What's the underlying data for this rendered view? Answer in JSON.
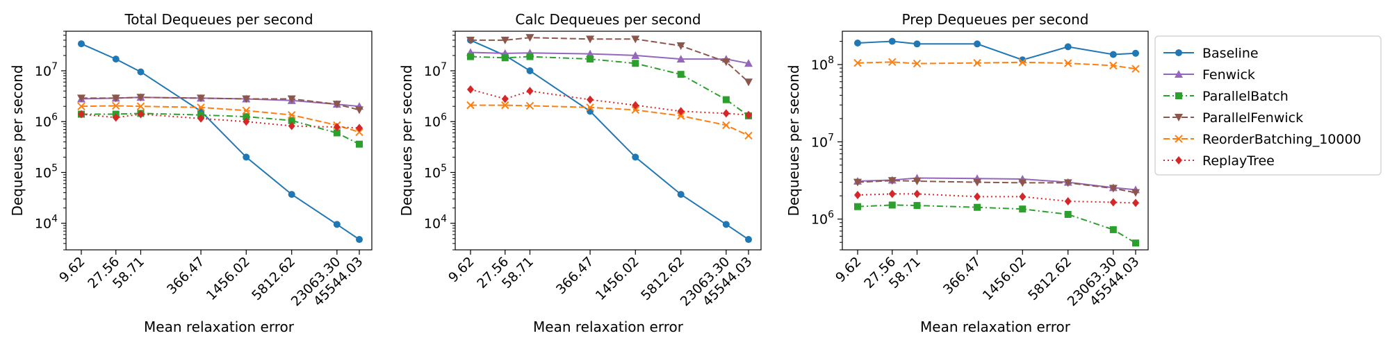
{
  "colors": {
    "Baseline": "#1f77b4",
    "Fenwick": "#9467bd",
    "ParallelBatch": "#2ca02c",
    "ParallelFenwick": "#8c564b",
    "ReorderBatching_10000": "#ff7f0e",
    "ReplayTree": "#d62728"
  },
  "legend": {
    "placement": "right, outside plots",
    "entries": [
      {
        "name": "Baseline",
        "marker": "circle",
        "dash": "solid"
      },
      {
        "name": "Fenwick",
        "marker": "triangle-up",
        "dash": "solid"
      },
      {
        "name": "ParallelBatch",
        "marker": "square",
        "dash": "dashdot"
      },
      {
        "name": "ParallelFenwick",
        "marker": "triangle-down",
        "dash": "dashed"
      },
      {
        "name": "ReorderBatching_10000",
        "marker": "x",
        "dash": "dashed"
      },
      {
        "name": "ReplayTree",
        "marker": "diamond",
        "dash": "dotted"
      }
    ]
  },
  "chart_data": [
    {
      "type": "line",
      "title": "Total Dequeues per second",
      "xlabel": "Mean relaxation error",
      "ylabel": "Dequeues per second",
      "xscale": "log",
      "yscale": "log",
      "x": [
        9.62,
        27.56,
        58.71,
        366.47,
        1456.02,
        5812.62,
        23063.3,
        45544.03
      ],
      "x_tick_labels": [
        "9.62",
        "27.56",
        "58.71",
        "366.47",
        "1456.02",
        "5812.62",
        "23063.30",
        "45544.03"
      ],
      "ylim": [
        3000,
        60000000
      ],
      "y_tick_labels": [
        "10^4",
        "10^5",
        "10^6",
        "10^7"
      ],
      "grid": false,
      "series": [
        {
          "name": "Baseline",
          "values": [
            34000000,
            17000000,
            9500000,
            1600000,
            200000,
            37000,
            9500,
            4800
          ]
        },
        {
          "name": "Fenwick",
          "values": [
            2800000,
            2900000,
            3000000,
            2900000,
            2800000,
            2600000,
            2200000,
            2000000
          ]
        },
        {
          "name": "ParallelBatch",
          "values": [
            1400000,
            1400000,
            1450000,
            1350000,
            1250000,
            1050000,
            600000,
            360000
          ]
        },
        {
          "name": "ParallelFenwick",
          "values": [
            2900000,
            2900000,
            3000000,
            2900000,
            2800000,
            2800000,
            2200000,
            1700000
          ]
        },
        {
          "name": "ReorderBatching_10000",
          "values": [
            2000000,
            2050000,
            2000000,
            1900000,
            1650000,
            1350000,
            850000,
            620000
          ]
        },
        {
          "name": "ReplayTree",
          "values": [
            1400000,
            1200000,
            1400000,
            1150000,
            1000000,
            820000,
            780000,
            750000
          ]
        }
      ]
    },
    {
      "type": "line",
      "title": "Calc Dequeues per second",
      "xlabel": "Mean relaxation error",
      "ylabel": "Dequeues per second",
      "xscale": "log",
      "yscale": "log",
      "x": [
        9.62,
        27.56,
        58.71,
        366.47,
        1456.02,
        5812.62,
        23063.3,
        45544.03
      ],
      "x_tick_labels": [
        "9.62",
        "27.56",
        "58.71",
        "366.47",
        "1456.02",
        "5812.62",
        "23063.30",
        "45544.03"
      ],
      "ylim": [
        3000,
        60000000
      ],
      "y_tick_labels": [
        "10^4",
        "10^5",
        "10^6",
        "10^7"
      ],
      "grid": false,
      "series": [
        {
          "name": "Baseline",
          "values": [
            40000000,
            20000000,
            10000000,
            1600000,
            200000,
            37000,
            9500,
            4800
          ]
        },
        {
          "name": "Fenwick",
          "values": [
            23000000,
            22000000,
            22500000,
            21500000,
            20000000,
            17000000,
            17000000,
            14000000
          ]
        },
        {
          "name": "ParallelBatch",
          "values": [
            19000000,
            18000000,
            19000000,
            17000000,
            14000000,
            8500000,
            2700000,
            1300000
          ]
        },
        {
          "name": "ParallelFenwick",
          "values": [
            40000000,
            40000000,
            45000000,
            42000000,
            42000000,
            31000000,
            15000000,
            6000000
          ]
        },
        {
          "name": "ReorderBatching_10000",
          "values": [
            2100000,
            2100000,
            2050000,
            1900000,
            1700000,
            1300000,
            850000,
            530000
          ]
        },
        {
          "name": "ReplayTree",
          "values": [
            4300000,
            2800000,
            4000000,
            2700000,
            2100000,
            1600000,
            1450000,
            1350000
          ]
        }
      ]
    },
    {
      "type": "line",
      "title": "Prep Dequeues per second",
      "xlabel": "Mean relaxation error",
      "ylabel": "Dequeues per second",
      "xscale": "log",
      "yscale": "log",
      "x": [
        9.62,
        27.56,
        58.71,
        366.47,
        1456.02,
        5812.62,
        23063.3,
        45544.03
      ],
      "x_tick_labels": [
        "9.62",
        "27.56",
        "58.71",
        "366.47",
        "1456.02",
        "5812.62",
        "23063.30",
        "45544.03"
      ],
      "ylim": [
        400000,
        270000000
      ],
      "y_tick_labels": [
        "10^6",
        "10^7",
        "10^8"
      ],
      "grid": false,
      "series": [
        {
          "name": "Baseline",
          "values": [
            190000000,
            200000000,
            185000000,
            185000000,
            115000000,
            170000000,
            135000000,
            140000000
          ]
        },
        {
          "name": "Fenwick",
          "values": [
            3100000,
            3200000,
            3400000,
            3350000,
            3300000,
            3000000,
            2550000,
            2400000
          ]
        },
        {
          "name": "ParallelBatch",
          "values": [
            1450000,
            1520000,
            1500000,
            1420000,
            1350000,
            1150000,
            730000,
            490000
          ]
        },
        {
          "name": "ParallelFenwick",
          "values": [
            3000000,
            3150000,
            3100000,
            3000000,
            2950000,
            2950000,
            2500000,
            2200000
          ]
        },
        {
          "name": "ReorderBatching_10000",
          "values": [
            105000000,
            108000000,
            103000000,
            105000000,
            107000000,
            104000000,
            97000000,
            88000000
          ]
        },
        {
          "name": "ReplayTree",
          "values": [
            2050000,
            2120000,
            2120000,
            1950000,
            1950000,
            1700000,
            1650000,
            1620000
          ]
        }
      ]
    }
  ]
}
